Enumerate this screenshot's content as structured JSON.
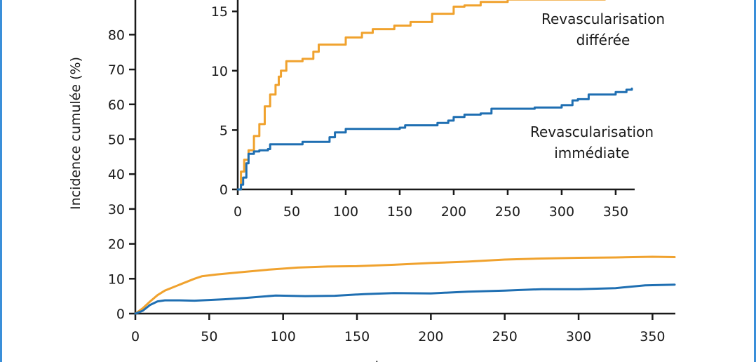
{
  "colors": {
    "orange": "#f0a22e",
    "blue": "#1f6fb2",
    "frame": "#3a8fd9"
  },
  "chart_data": [
    {
      "type": "line",
      "title": "",
      "xlabel": "Jours",
      "ylabel": "Incidence cumulée (%)",
      "xlim": [
        0,
        365
      ],
      "ylim": [
        0,
        85
      ],
      "xticks": [
        "0",
        "50",
        "100",
        "150",
        "200",
        "250",
        "300",
        "350"
      ],
      "yticks": [
        "0",
        "10",
        "20",
        "30",
        "40",
        "50",
        "60",
        "70",
        "80"
      ],
      "series": [
        {
          "color": "#f0a22e",
          "x": [
            0,
            5,
            10,
            15,
            20,
            30,
            40,
            45,
            55,
            70,
            90,
            110,
            130,
            150,
            175,
            200,
            225,
            250,
            275,
            300,
            325,
            350,
            365
          ],
          "y": [
            0,
            1.5,
            3.5,
            5.3,
            6.6,
            8.3,
            10.0,
            10.7,
            11.2,
            11.8,
            12.6,
            13.2,
            13.5,
            13.6,
            14.0,
            14.5,
            14.9,
            15.5,
            15.8,
            16.0,
            16.1,
            16.3,
            16.2
          ]
        },
        {
          "color": "#1f6fb2",
          "x": [
            0,
            5,
            10,
            15,
            20,
            30,
            40,
            50,
            60,
            75,
            95,
            115,
            135,
            155,
            175,
            200,
            225,
            250,
            275,
            300,
            325,
            345,
            365
          ],
          "y": [
            0,
            0.8,
            2.5,
            3.5,
            3.8,
            3.8,
            3.7,
            3.9,
            4.1,
            4.5,
            5.2,
            5.0,
            5.1,
            5.6,
            5.9,
            5.8,
            6.3,
            6.6,
            7.0,
            7.0,
            7.3,
            8.1,
            8.3
          ]
        }
      ]
    },
    {
      "type": "line",
      "title": "",
      "xlabel": "",
      "ylabel": "",
      "xlim": [
        0,
        365
      ],
      "ylim": [
        0,
        16
      ],
      "xticks": [
        "0",
        "50",
        "100",
        "150",
        "200",
        "250",
        "300",
        "350"
      ],
      "yticks": [
        "0",
        "5",
        "10",
        "15"
      ],
      "series": [
        {
          "name": "Revascularisation différée",
          "color": "#f0a22e",
          "x": [
            0,
            3,
            6,
            10,
            15,
            20,
            25,
            30,
            35,
            38,
            40,
            45,
            55,
            60,
            70,
            75,
            95,
            100,
            110,
            115,
            125,
            135,
            145,
            150,
            160,
            180,
            190,
            200,
            210,
            225,
            235,
            250,
            275,
            300,
            325,
            340
          ],
          "y": [
            0,
            1.5,
            2.5,
            3.3,
            4.5,
            5.5,
            7.0,
            8.0,
            8.8,
            9.5,
            10.0,
            10.8,
            10.8,
            11.0,
            11.6,
            12.2,
            12.2,
            12.8,
            12.8,
            13.2,
            13.5,
            13.5,
            13.8,
            13.8,
            14.1,
            14.8,
            14.8,
            15.4,
            15.5,
            15.8,
            15.8,
            16.0,
            16.0,
            16.0,
            16.0,
            16.0
          ],
          "label_lines": [
            "Revascularisation",
            "différée"
          ]
        },
        {
          "name": "Revascularisation immédiate",
          "color": "#1f6fb2",
          "x": [
            0,
            3,
            5,
            8,
            10,
            15,
            20,
            28,
            30,
            45,
            60,
            75,
            85,
            90,
            100,
            150,
            155,
            175,
            185,
            195,
            200,
            210,
            225,
            235,
            250,
            275,
            300,
            310,
            315,
            325,
            350,
            360,
            365
          ],
          "y": [
            0,
            0.4,
            1.0,
            2.2,
            3.0,
            3.2,
            3.3,
            3.4,
            3.8,
            3.8,
            4.0,
            4.0,
            4.4,
            4.8,
            5.1,
            5.2,
            5.4,
            5.4,
            5.6,
            5.8,
            6.1,
            6.3,
            6.4,
            6.8,
            6.8,
            6.9,
            7.1,
            7.5,
            7.6,
            8.0,
            8.2,
            8.4,
            8.5
          ],
          "label_lines": [
            "Revascularisation",
            "immédiate"
          ]
        }
      ]
    }
  ]
}
